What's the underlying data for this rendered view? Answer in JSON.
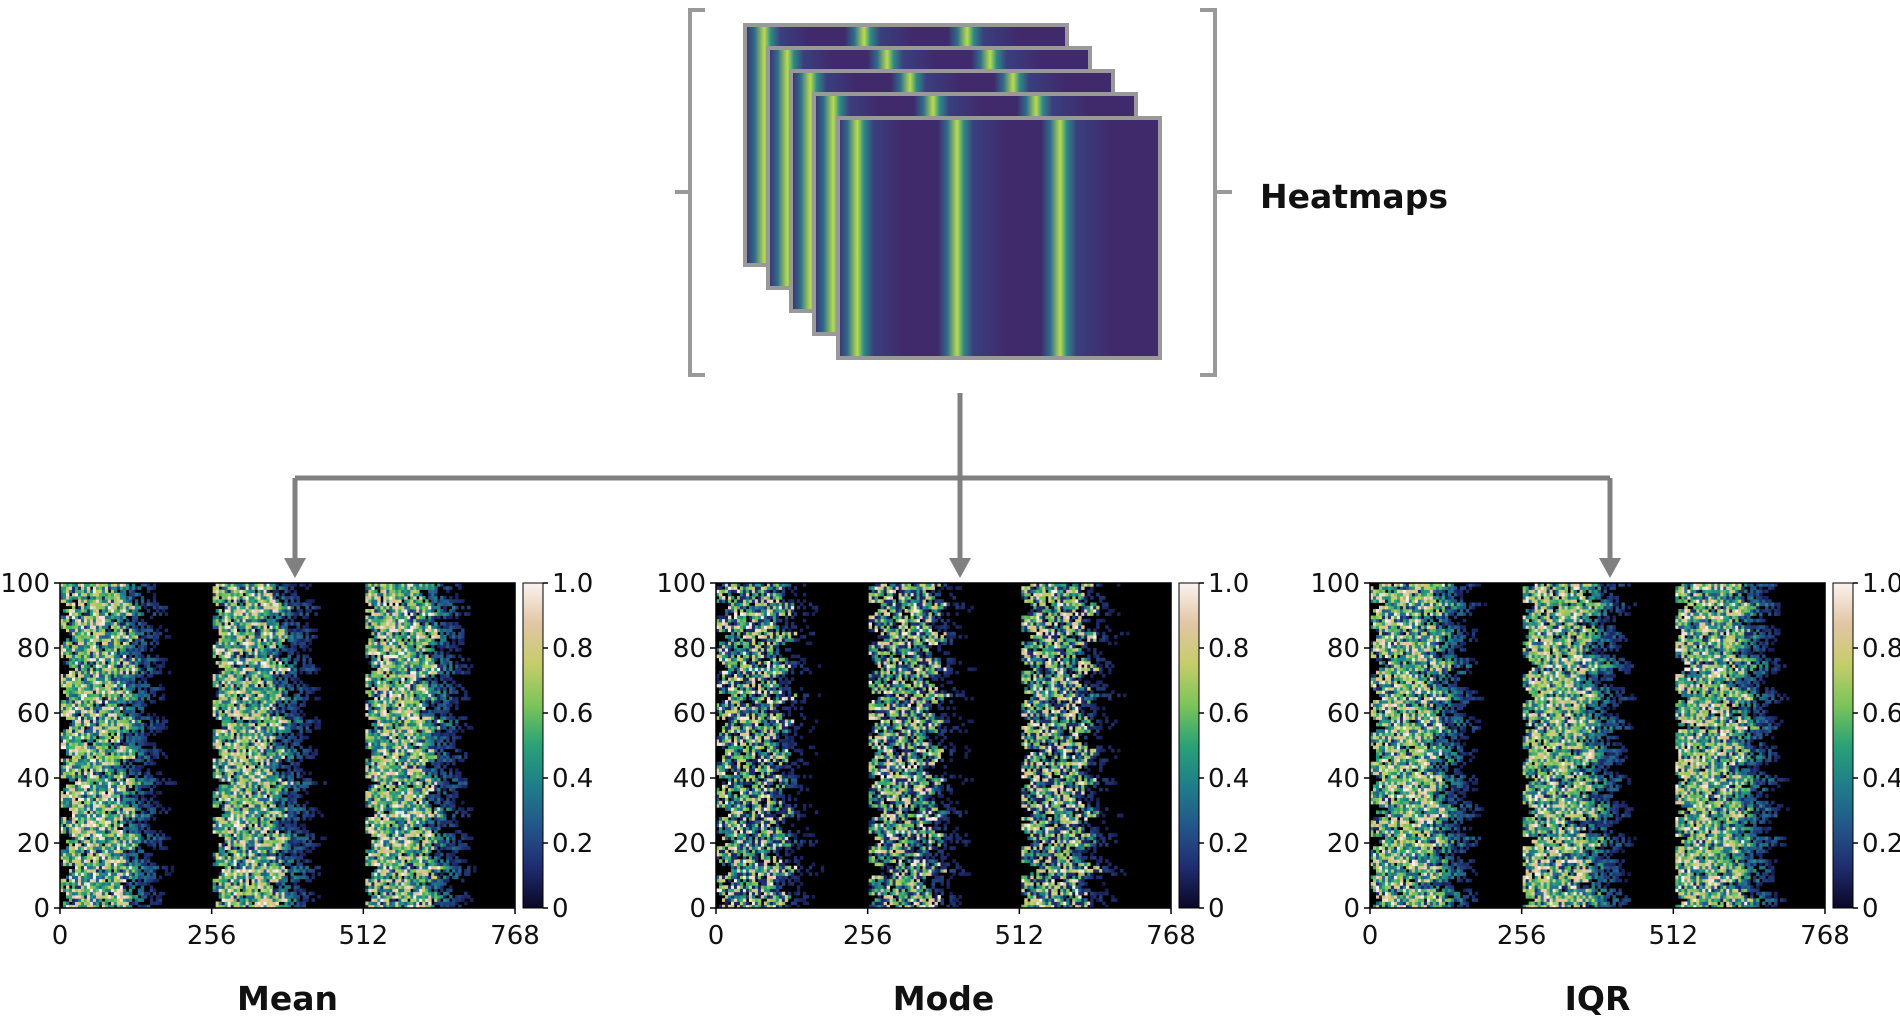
{
  "stack_label": "Heatmaps",
  "colors": {
    "frame": "#999999",
    "connector": "#808080",
    "stack_base": "#3f2a6b",
    "panel_background": "#000000"
  },
  "colormap": [
    "#0b0726",
    "#1f2c6e",
    "#23568a",
    "#1f7d8a",
    "#2aa276",
    "#7cc459",
    "#c5cd6a",
    "#e3c5a5",
    "#fbf3ef"
  ],
  "panel_axes": {
    "x_ticks": [
      "0",
      "256",
      "512",
      "768"
    ],
    "y_ticks": [
      "0",
      "20",
      "40",
      "60",
      "80",
      "100"
    ],
    "colorbar_ticks": [
      "0",
      "0.2",
      "0.4",
      "0.6",
      "0.8",
      "1.0"
    ]
  },
  "panels": [
    {
      "id": "mean",
      "title": "Mean"
    },
    {
      "id": "mode",
      "title": "Mode"
    },
    {
      "id": "iqr",
      "title": "IQR"
    }
  ]
}
